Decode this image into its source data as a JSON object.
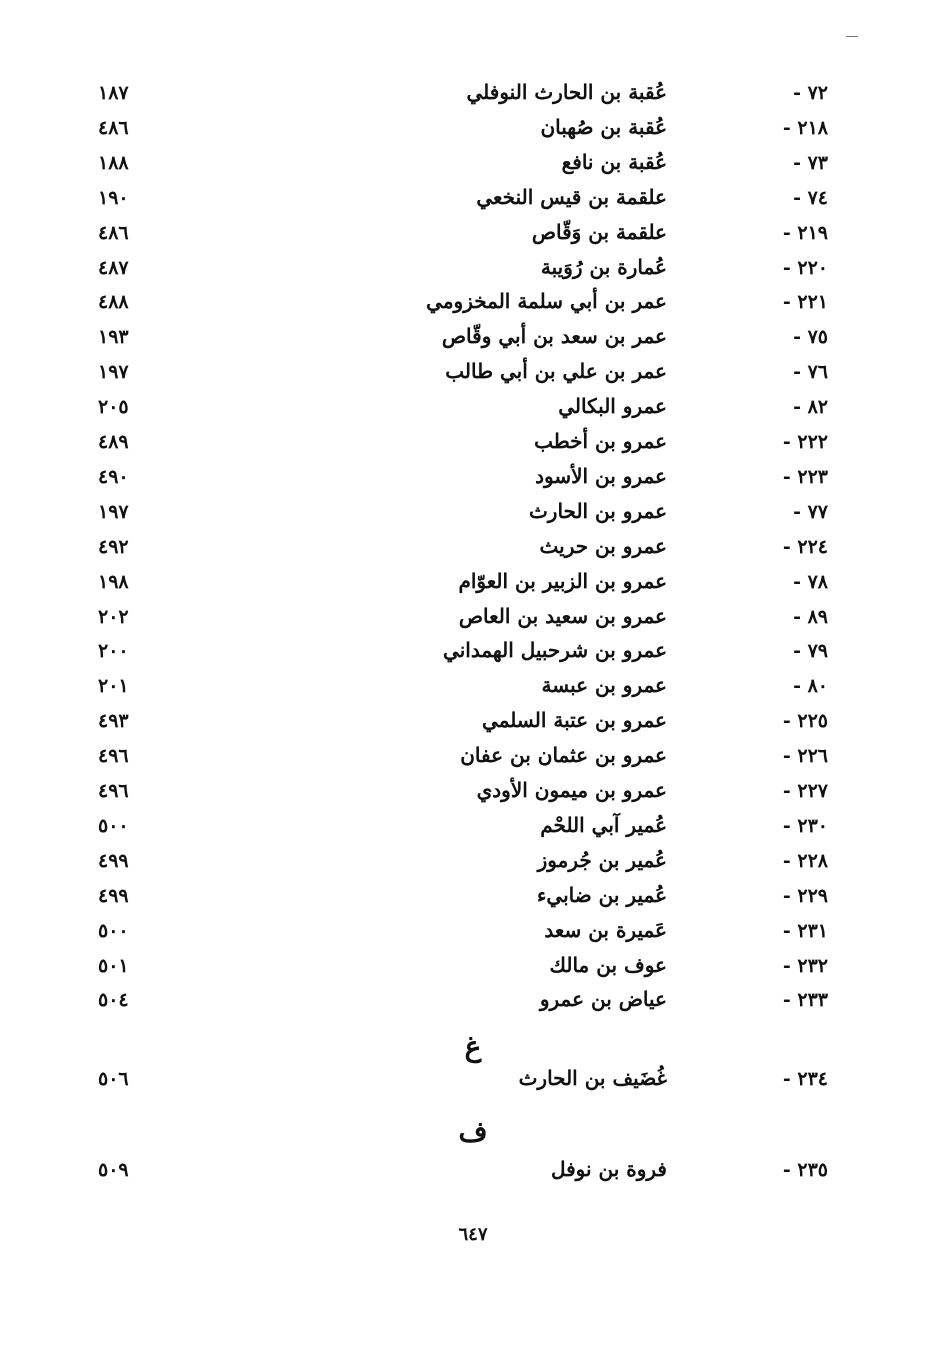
{
  "entries": [
    {
      "num": "٧٢ -",
      "name": "عُقبة بن الحارث النوفلي",
      "page": "١٨٧"
    },
    {
      "num": "٢١٨ -",
      "name": "عُقبة بن صُهبان",
      "page": "٤٨٦"
    },
    {
      "num": "٧٣ -",
      "name": "عُقبة بن نافع",
      "page": "١٨٨"
    },
    {
      "num": "٧٤ -",
      "name": "علقمة بن قيس النخعي",
      "page": "١٩٠"
    },
    {
      "num": "٢١٩ -",
      "name": "علقمة بن وَقّاص",
      "page": "٤٨٦"
    },
    {
      "num": "٢٢٠ -",
      "name": "عُمارة بن رُوَيبة",
      "page": "٤٨٧"
    },
    {
      "num": "٢٢١ -",
      "name": "عمر بن أبي سلمة المخزومي",
      "page": "٤٨٨"
    },
    {
      "num": "٧٥ -",
      "name": "عمر بن سعد بن أبي وقّاص",
      "page": "١٩٣"
    },
    {
      "num": "٧٦ -",
      "name": "عمر بن علي بن أبي طالب",
      "page": "١٩٧"
    },
    {
      "num": "٨٢ -",
      "name": "عمرو البكالي",
      "page": "٢٠٥"
    },
    {
      "num": "٢٢٢ -",
      "name": "عمرو بن أخطب",
      "page": "٤٨٩"
    },
    {
      "num": "٢٢٣ -",
      "name": "عمرو بن الأسود",
      "page": "٤٩٠"
    },
    {
      "num": "٧٧ -",
      "name": "عمرو بن الحارث",
      "page": "١٩٧"
    },
    {
      "num": "٢٢٤ -",
      "name": "عمرو بن حريث",
      "page": "٤٩٢"
    },
    {
      "num": "٧٨ -",
      "name": "عمرو بن الزبير بن العوّام",
      "page": "١٩٨"
    },
    {
      "num": "٨٩ -",
      "name": "عمرو بن سعيد بن العاص",
      "page": "٢٠٢"
    },
    {
      "num": "٧٩ -",
      "name": "عمرو بن شرحبيل الهمداني",
      "page": "٢٠٠"
    },
    {
      "num": "٨٠ -",
      "name": "عمرو بن عبسة",
      "page": "٢٠١"
    },
    {
      "num": "٢٢٥ -",
      "name": "عمرو بن عتبة السلمي",
      "page": "٤٩٣"
    },
    {
      "num": "٢٢٦ -",
      "name": "عمرو بن عثمان بن عفان",
      "page": "٤٩٦"
    },
    {
      "num": "٢٢٧ -",
      "name": "عمرو بن ميمون الأودي",
      "page": "٤٩٦"
    },
    {
      "num": "٢٣٠ -",
      "name": "عُمير آبي اللحْم",
      "page": "٥٠٠"
    },
    {
      "num": "٢٢٨ -",
      "name": "عُمير بن جُرموز",
      "page": "٤٩٩"
    },
    {
      "num": "٢٢٩ -",
      "name": "عُمير بن ضابيء",
      "page": "٤٩٩"
    },
    {
      "num": "٢٣١ -",
      "name": "عَميرة بن سعد",
      "page": "٥٠٠"
    },
    {
      "num": "٢٣٢ -",
      "name": "عوف بن مالك",
      "page": "٥٠١"
    },
    {
      "num": "٢٣٣ -",
      "name": "عياض بن عمرو",
      "page": "٥٠٤"
    }
  ],
  "sections": [
    {
      "letter": "غ",
      "entries": [
        {
          "num": "٢٣٤ -",
          "name": "غُضَيف بن الحارث",
          "page": "٥٠٦"
        }
      ]
    },
    {
      "letter": "ف",
      "entries": [
        {
          "num": "٢٣٥ -",
          "name": "فروة بن نوفل",
          "page": "٥٠٩"
        }
      ]
    }
  ],
  "page_number": "٦٤٧"
}
